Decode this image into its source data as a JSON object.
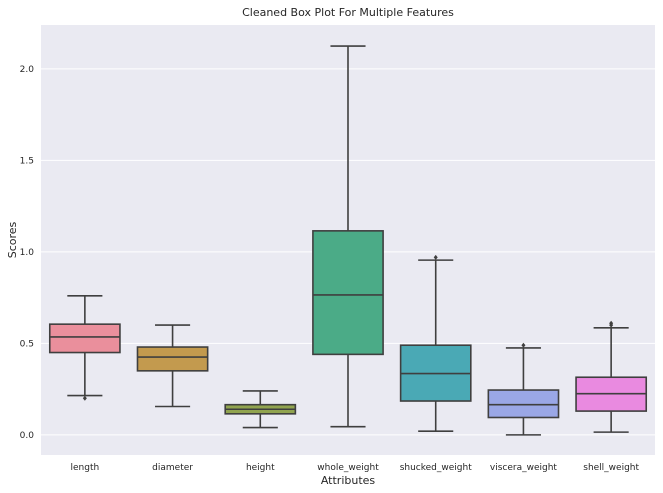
{
  "chart_data": {
    "type": "box",
    "title": "Cleaned Box Plot For Multiple Features",
    "xlabel": "Attributes",
    "ylabel": "Scores",
    "ylim": [
      -0.11,
      2.24
    ],
    "yticks": [
      "0.0",
      "0.5",
      "1.0",
      "1.5",
      "2.0"
    ],
    "ytick_values": [
      0.0,
      0.5,
      1.0,
      1.5,
      2.0
    ],
    "grid": true,
    "background": "#eaeaf2",
    "boxes": [
      {
        "category": "length",
        "color": "#ea8f9c",
        "whisker_low": 0.215,
        "q1": 0.45,
        "median": 0.535,
        "q3": 0.605,
        "whisker_high": 0.76,
        "fliers": [
          0.2
        ]
      },
      {
        "category": "diameter",
        "color": "#c39a4e",
        "whisker_low": 0.155,
        "q1": 0.35,
        "median": 0.425,
        "q3": 0.48,
        "whisker_high": 0.6,
        "fliers": []
      },
      {
        "category": "height",
        "color": "#91a44f",
        "whisker_low": 0.04,
        "q1": 0.115,
        "median": 0.14,
        "q3": 0.165,
        "whisker_high": 0.24,
        "fliers": []
      },
      {
        "category": "whole_weight",
        "color": "#4bab87",
        "whisker_low": 0.045,
        "q1": 0.44,
        "median": 0.765,
        "q3": 1.115,
        "whisker_high": 2.125,
        "fliers": []
      },
      {
        "category": "shucked_weight",
        "color": "#4aa9b5",
        "whisker_low": 0.02,
        "q1": 0.185,
        "median": 0.335,
        "q3": 0.49,
        "whisker_high": 0.955,
        "fliers": [
          0.97
        ]
      },
      {
        "category": "viscera_weight",
        "color": "#9aa7e6",
        "whisker_low": 0.0,
        "q1": 0.095,
        "median": 0.165,
        "q3": 0.245,
        "whisker_high": 0.475,
        "fliers": [
          0.49
        ]
      },
      {
        "category": "shell_weight",
        "color": "#e98ae0",
        "whisker_low": 0.015,
        "q1": 0.13,
        "median": 0.225,
        "q3": 0.315,
        "whisker_high": 0.585,
        "fliers": [
          0.6,
          0.61
        ]
      }
    ]
  }
}
